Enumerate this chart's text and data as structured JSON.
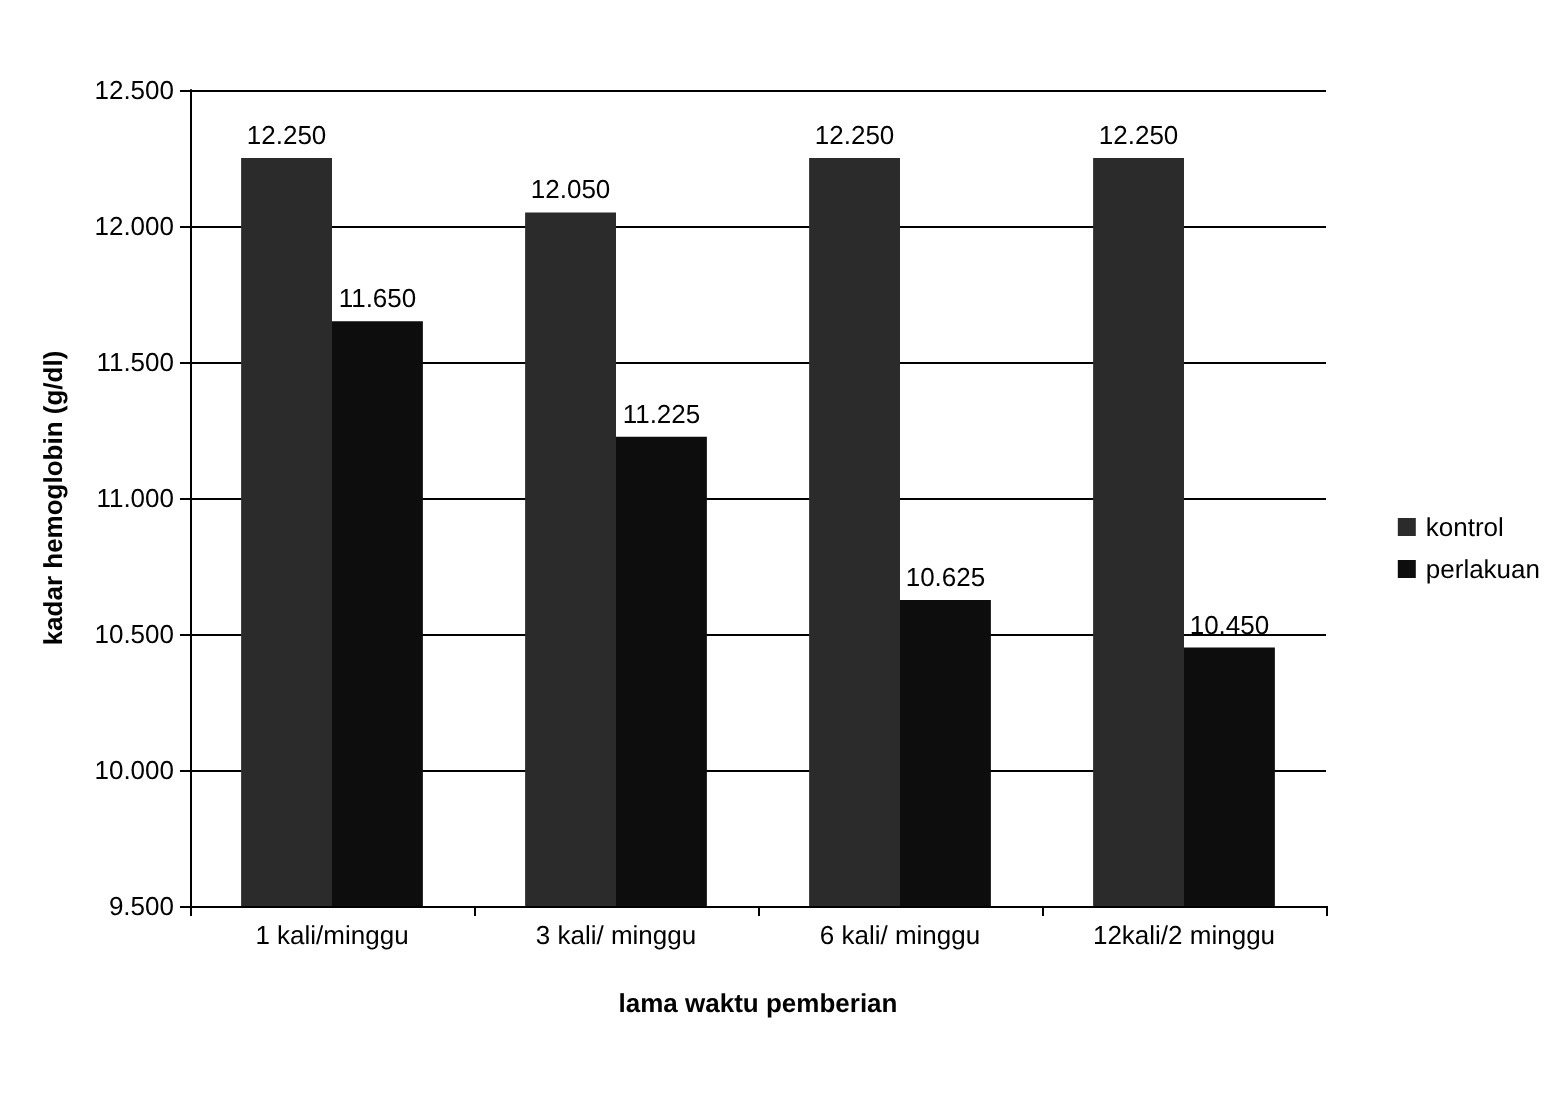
{
  "chart_data": {
    "type": "bar",
    "xlabel": "lama waktu pemberian",
    "ylabel": "kadar hemoglobin (g/dl)",
    "categories": [
      "1 kali/minggu",
      "3 kali/ minggu",
      "6 kali/ minggu",
      "12kali/2 minggu"
    ],
    "series": [
      {
        "name": "kontrol",
        "color": "#2b2b2b",
        "values": [
          12.25,
          12.05,
          12.25,
          12.25
        ],
        "value_labels": [
          "12.250",
          "12.050",
          "12.250",
          "12.250"
        ]
      },
      {
        "name": "perlakuan",
        "color": "#0d0d0d",
        "values": [
          11.65,
          11.225,
          10.625,
          10.45
        ],
        "value_labels": [
          "11.650",
          "11.225",
          "10.625",
          "10.450"
        ]
      }
    ],
    "ylim": [
      9.5,
      12.5
    ],
    "yticks": [
      {
        "value": 9.5,
        "label": "9.500"
      },
      {
        "value": 10,
        "label": "10.000"
      },
      {
        "value": 10.5,
        "label": "10.500"
      },
      {
        "value": 11,
        "label": "11.000"
      },
      {
        "value": 11.5,
        "label": "11.500"
      },
      {
        "value": 12,
        "label": "12.000"
      },
      {
        "value": 12.5,
        "label": "12.500"
      }
    ],
    "grid": "y",
    "legend": "right"
  }
}
